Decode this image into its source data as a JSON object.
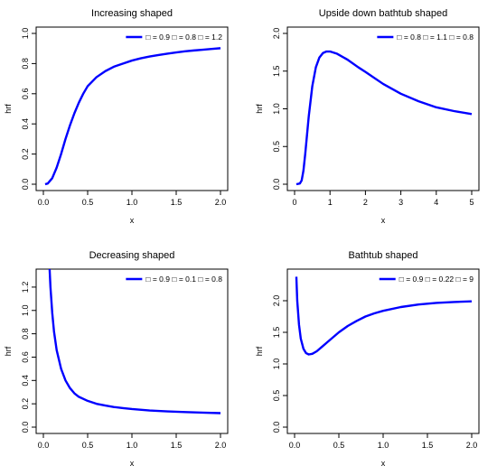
{
  "chart_data": [
    {
      "type": "line",
      "title": "Increasing shaped",
      "xlabel": "x",
      "ylabel": "hrf",
      "xlim": [
        0,
        2
      ],
      "ylim": [
        0,
        1
      ],
      "x_ticks": [
        "0.0",
        "0.5",
        "1.0",
        "1.5",
        "2.0"
      ],
      "y_ticks": [
        "0.0",
        "0.2",
        "0.4",
        "0.6",
        "0.8",
        "1.0"
      ],
      "legend_position": "top-right",
      "legend": "□ = 0.9  □ = 0.8  □ = 1.2",
      "line_color": "#0000ff",
      "x": [
        0.02,
        0.05,
        0.1,
        0.15,
        0.2,
        0.25,
        0.3,
        0.35,
        0.4,
        0.45,
        0.5,
        0.6,
        0.7,
        0.8,
        0.9,
        1.0,
        1.1,
        1.2,
        1.3,
        1.4,
        1.5,
        1.6,
        1.7,
        1.8,
        1.9,
        2.0
      ],
      "y": [
        0.0,
        0.005,
        0.04,
        0.11,
        0.2,
        0.3,
        0.39,
        0.47,
        0.54,
        0.6,
        0.65,
        0.71,
        0.75,
        0.78,
        0.8,
        0.82,
        0.835,
        0.847,
        0.857,
        0.866,
        0.874,
        0.881,
        0.887,
        0.892,
        0.897,
        0.902
      ]
    },
    {
      "type": "line",
      "title": "Upside down bathtub shaped",
      "xlabel": "x",
      "ylabel": "hrf",
      "xlim": [
        0,
        5
      ],
      "ylim": [
        0,
        2
      ],
      "x_ticks": [
        "0",
        "1",
        "2",
        "3",
        "4",
        "5"
      ],
      "y_ticks": [
        "0.0",
        "0.5",
        "1.0",
        "1.5",
        "2.0"
      ],
      "legend_position": "top-right",
      "legend": "□ = 0.8  □ = 1.1  □ = 0.8",
      "line_color": "#0000ff",
      "x": [
        0.05,
        0.15,
        0.2,
        0.25,
        0.3,
        0.35,
        0.4,
        0.5,
        0.6,
        0.7,
        0.8,
        0.9,
        1.0,
        1.2,
        1.5,
        1.8,
        2.0,
        2.5,
        3.0,
        3.5,
        4.0,
        4.5,
        5.0
      ],
      "y": [
        0.0,
        0.01,
        0.05,
        0.18,
        0.4,
        0.65,
        0.9,
        1.3,
        1.55,
        1.68,
        1.74,
        1.76,
        1.76,
        1.73,
        1.65,
        1.55,
        1.49,
        1.33,
        1.2,
        1.1,
        1.02,
        0.97,
        0.93
      ]
    },
    {
      "type": "line",
      "title": "Decreasing shaped",
      "xlabel": "x",
      "ylabel": "hrf",
      "xlim": [
        0,
        2
      ],
      "ylim": [
        0,
        1.3
      ],
      "x_ticks": [
        "0.0",
        "0.5",
        "1.0",
        "1.5",
        "2.0"
      ],
      "y_ticks": [
        "0.0",
        "0.2",
        "0.4",
        "0.6",
        "0.8",
        "1.0",
        "1.2"
      ],
      "legend_position": "top-right",
      "legend": "□ = 0.9  □ = 0.1  □ = 0.8",
      "line_color": "#0000ff",
      "x": [
        0.07,
        0.08,
        0.1,
        0.12,
        0.15,
        0.2,
        0.25,
        0.3,
        0.35,
        0.4,
        0.5,
        0.6,
        0.7,
        0.8,
        0.9,
        1.0,
        1.2,
        1.4,
        1.6,
        1.8,
        2.0
      ],
      "y": [
        1.36,
        1.2,
        0.98,
        0.82,
        0.66,
        0.5,
        0.4,
        0.335,
        0.29,
        0.26,
        0.225,
        0.2,
        0.185,
        0.172,
        0.163,
        0.155,
        0.143,
        0.135,
        0.129,
        0.124,
        0.12
      ]
    },
    {
      "type": "line",
      "title": "Bathtub shaped",
      "xlabel": "x",
      "ylabel": "hrf",
      "xlim": [
        0,
        2
      ],
      "ylim": [
        0,
        2.4
      ],
      "x_ticks": [
        "0.0",
        "0.5",
        "1.0",
        "1.5",
        "2.0"
      ],
      "y_ticks": [
        "0.0",
        "0.5",
        "1.0",
        "1.5",
        "2.0"
      ],
      "legend_position": "top-right",
      "legend": "□ = 0.9  □ = 0.22  □ = 9",
      "line_color": "#0000ff",
      "x": [
        0.02,
        0.03,
        0.05,
        0.07,
        0.1,
        0.13,
        0.16,
        0.2,
        0.25,
        0.3,
        0.4,
        0.5,
        0.6,
        0.7,
        0.8,
        0.9,
        1.0,
        1.2,
        1.4,
        1.6,
        1.8,
        2.0
      ],
      "y": [
        2.38,
        2.0,
        1.62,
        1.4,
        1.24,
        1.17,
        1.15,
        1.16,
        1.2,
        1.26,
        1.38,
        1.5,
        1.6,
        1.68,
        1.75,
        1.8,
        1.84,
        1.9,
        1.94,
        1.965,
        1.98,
        1.99
      ]
    }
  ]
}
